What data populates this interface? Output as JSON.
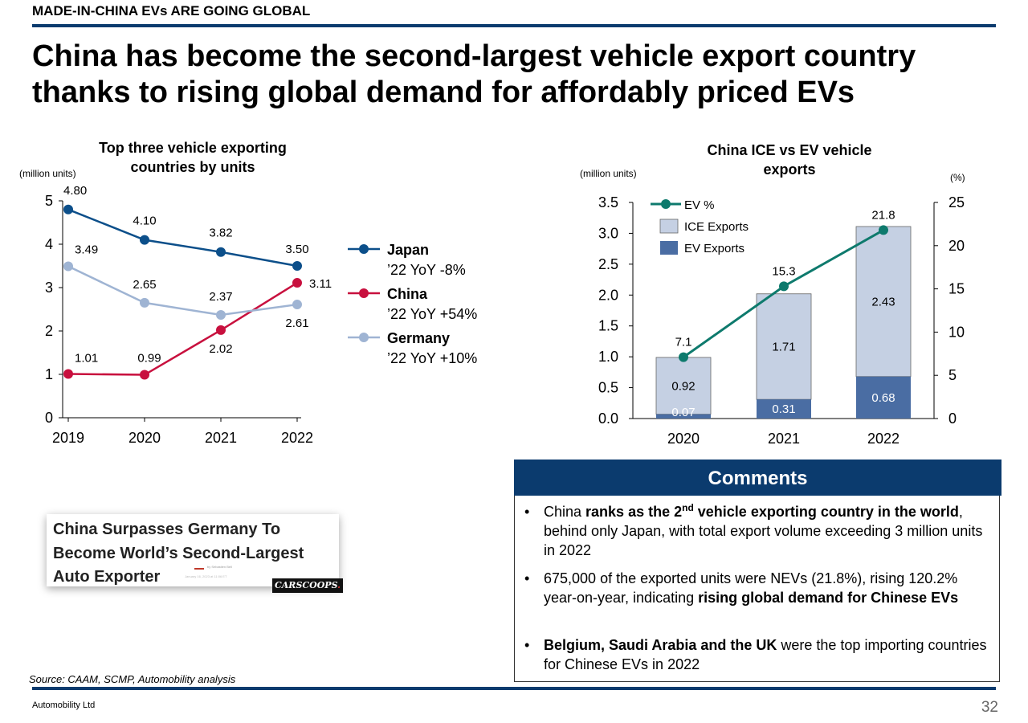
{
  "header": {
    "kicker": "MADE-IN-CHINA EVs ARE GOING GLOBAL",
    "title_line1": "China has become the second-largest vehicle export country",
    "title_line2": "thanks to rising global demand for affordably priced EVs"
  },
  "chart_data": [
    {
      "type": "line",
      "title": "Top three vehicle exporting countries by units",
      "title_lines": [
        "Top three vehicle exporting",
        "countries by units"
      ],
      "ylabel": "(million units)",
      "x": [
        "2019",
        "2020",
        "2021",
        "2022"
      ],
      "ylim": [
        0,
        5
      ],
      "yticks": [
        "0",
        "1",
        "2",
        "3",
        "4",
        "5"
      ],
      "series": [
        {
          "name": "Japan",
          "note": "’22 YoY -8%",
          "color": "#0c4f8a",
          "values": [
            4.8,
            4.1,
            3.82,
            3.5
          ],
          "labels": [
            "4.80",
            "4.10",
            "3.82",
            "3.50"
          ]
        },
        {
          "name": "China",
          "note": "’22 YoY +54%",
          "color": "#c8103e",
          "values": [
            1.01,
            0.99,
            2.02,
            3.11
          ],
          "labels": [
            "1.01",
            "0.99",
            "2.02",
            "3.11"
          ]
        },
        {
          "name": "Germany",
          "note": "’22 YoY +10%",
          "color": "#9fb4d3",
          "values": [
            3.49,
            2.65,
            2.37,
            2.61
          ],
          "labels": [
            "3.49",
            "2.65",
            "2.37",
            "2.61"
          ]
        }
      ],
      "legend_position": "right",
      "grid": false
    },
    {
      "type": "bar",
      "subtype": "stacked bar with line on secondary axis",
      "title": "China ICE vs EV vehicle exports",
      "title_lines": [
        "China ICE vs EV vehicle",
        "exports"
      ],
      "ylabel": "(million units)",
      "y2label": "(%)",
      "categories": [
        "2020",
        "2021",
        "2022"
      ],
      "ylim": [
        0,
        3.5
      ],
      "yticks": [
        "0.0",
        "0.5",
        "1.0",
        "1.5",
        "2.0",
        "2.5",
        "3.0",
        "3.5"
      ],
      "y2lim": [
        0,
        25
      ],
      "y2ticks": [
        "0",
        "5",
        "10",
        "15",
        "20",
        "25"
      ],
      "series": [
        {
          "name": "EV Exports",
          "color": "#4a6da3",
          "values": [
            0.07,
            0.31,
            0.68
          ],
          "labels": [
            "0.07",
            "0.31",
            "0.68"
          ]
        },
        {
          "name": "ICE Exports",
          "color": "#c5d0e3",
          "values": [
            0.92,
            1.71,
            2.43
          ],
          "labels": [
            "0.92",
            "1.71",
            "2.43"
          ]
        },
        {
          "name": "EV %",
          "color": "#0e7a6d",
          "axis": "secondary",
          "values": [
            7.1,
            15.3,
            21.8
          ],
          "labels": [
            "7.1",
            "15.3",
            "21.8"
          ]
        }
      ],
      "legend_position": "top-left",
      "grid": false
    }
  ],
  "headline": {
    "line1": "China Surpasses Germany To",
    "line2": "Become World’s Second-Largest",
    "line3": "Auto Exporter",
    "logo": "CARSCOOPS",
    "byline": "by Sebastien Bell",
    "date": "January 16, 2023 at 11:06 ET"
  },
  "comments": {
    "heading": "Comments",
    "bullets": [
      {
        "segments": [
          {
            "text": "China ",
            "bold": false
          },
          {
            "text": "ranks as the 2",
            "bold": true
          },
          {
            "text": "nd",
            "bold": true,
            "sup": true
          },
          {
            "text": " vehicle exporting country in the world",
            "bold": true
          },
          {
            "text": ", behind only Japan, with total export volume exceeding 3 million units in 2022",
            "bold": false
          }
        ]
      },
      {
        "segments": [
          {
            "text": "675,000 of the exported units were NEVs (21.8%), rising 120.2% year-on-year, indicating ",
            "bold": false
          },
          {
            "text": "rising global demand for Chinese EVs",
            "bold": true
          }
        ]
      },
      {
        "segments": [
          {
            "text": "Belgium, Saudi Arabia and the UK",
            "bold": true
          },
          {
            "text": " were the top importing countries for Chinese EVs in 2022",
            "bold": false
          }
        ]
      }
    ]
  },
  "footer": {
    "source": "Source: CAAM, SCMP, Automobility analysis",
    "company": "Automobility Ltd",
    "page_number": "32"
  }
}
